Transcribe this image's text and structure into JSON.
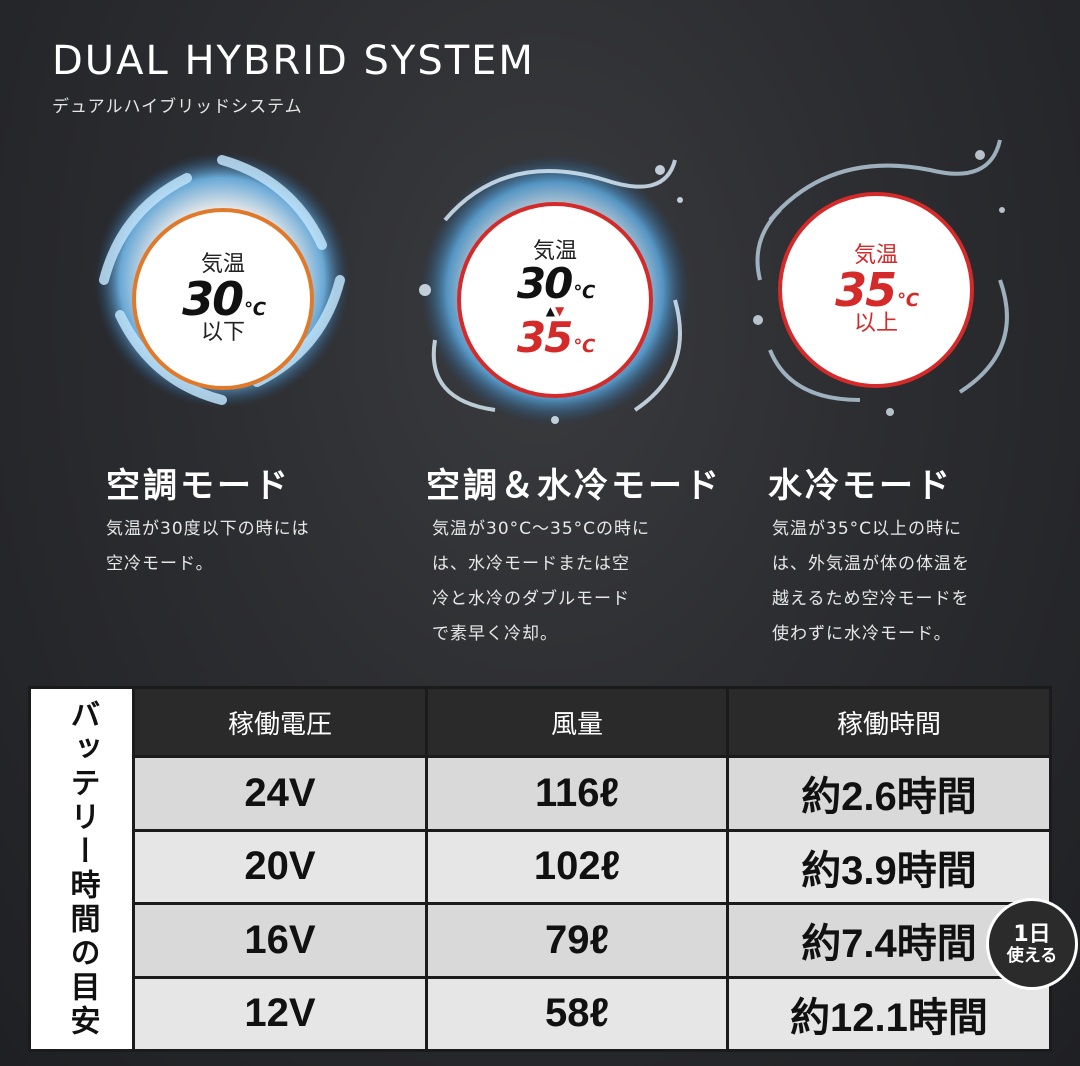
{
  "header": {
    "title": "DUAL HYBRID SYSTEM",
    "subtitle": "デュアルハイブリッドシステム"
  },
  "modes": [
    {
      "name": "空調モード",
      "label_top": "気温",
      "temp": "30",
      "unit": "℃",
      "label_bottom": "以下",
      "description": [
        "気温が30度以下の時には",
        "空冷モード。"
      ]
    },
    {
      "name": "空調＆水冷モード",
      "label_top": "気温",
      "temp_low": "30",
      "temp_high": "35",
      "unit": "℃",
      "description": [
        "気温が30°C〜35°Cの時に",
        "は、水冷モードまたは空",
        "冷と水冷のダブルモード",
        "で素早く冷却。"
      ]
    },
    {
      "name": "水冷モード",
      "label_top": "気温",
      "temp": "35",
      "unit": "℃",
      "label_bottom": "以上",
      "description": [
        "気温が35°C以上の時に",
        "は、外気温が体の体温を",
        "越えるため空冷モードを",
        "使わずに水冷モード。"
      ]
    }
  ],
  "table": {
    "side_label": "バッテリー時間の目安",
    "headers": [
      "稼働電圧",
      "風量",
      "稼働時間"
    ],
    "rows": [
      [
        "24V",
        "116ℓ",
        "約2.6時間"
      ],
      [
        "20V",
        "102ℓ",
        "約3.9時間"
      ],
      [
        "16V",
        "79ℓ",
        "約7.4時間"
      ],
      [
        "12V",
        "58ℓ",
        "約12.1時間"
      ]
    ]
  },
  "badge": {
    "line1": "1日",
    "line2": "使える"
  },
  "colors": {
    "air_ring": "#e07a2a",
    "water_ring": "#d42a2a",
    "air_glow": "#5aaee6",
    "temp_black": "#111111",
    "temp_red": "#d42a2a"
  }
}
